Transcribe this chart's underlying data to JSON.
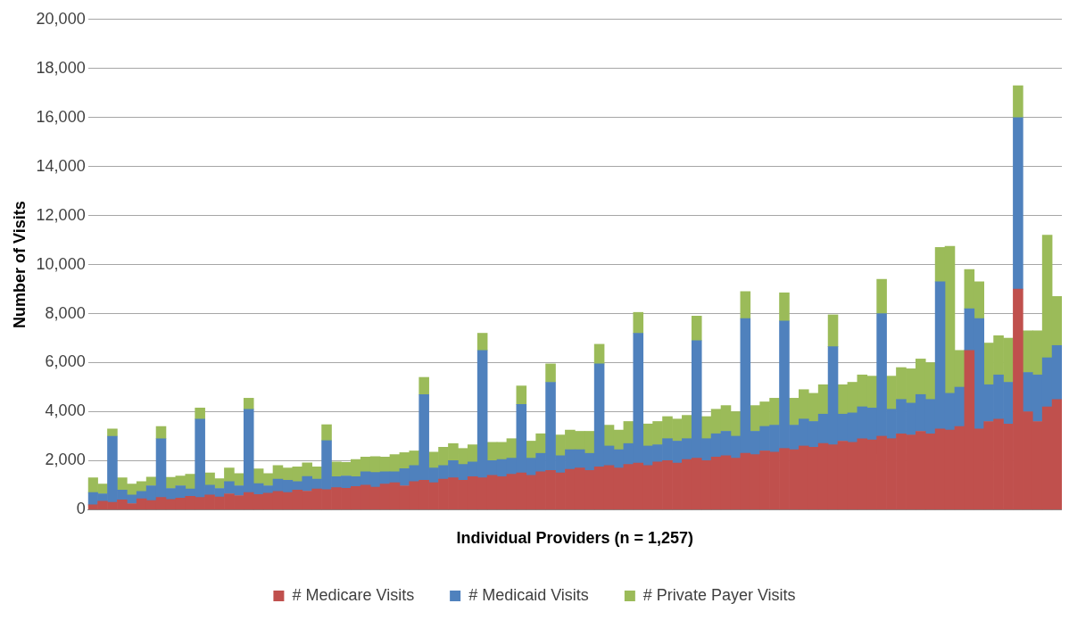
{
  "chart_data": {
    "type": "bar",
    "stacked": true,
    "xlabel": "Individual Providers (n = 1,257)",
    "ylabel": "Number of Visits",
    "legend": "bottom",
    "grid": "y",
    "ylim": [
      0,
      20000
    ],
    "yticks": [
      {
        "value": 0,
        "label": "0"
      },
      {
        "value": 2000,
        "label": "2,000"
      },
      {
        "value": 4000,
        "label": "4,000"
      },
      {
        "value": 6000,
        "label": "6,000"
      },
      {
        "value": 8000,
        "label": "8,000"
      },
      {
        "value": 10000,
        "label": "10,000"
      },
      {
        "value": 12000,
        "label": "12,000"
      },
      {
        "value": 14000,
        "label": "14,000"
      },
      {
        "value": 16000,
        "label": "16,000"
      },
      {
        "value": 18000,
        "label": "18,000"
      },
      {
        "value": 20000,
        "label": "20,000"
      }
    ],
    "categories": [
      null,
      null,
      null,
      null,
      null,
      null,
      null,
      null,
      null,
      null,
      null,
      null,
      null,
      null,
      null,
      null,
      null,
      null,
      null,
      null,
      null,
      null,
      null,
      null,
      null,
      null,
      null,
      null,
      null,
      null,
      null,
      null,
      null,
      null,
      null,
      null,
      null,
      null,
      null,
      null,
      null,
      null,
      null,
      null,
      null,
      null,
      null,
      null,
      null,
      null,
      null,
      null,
      null,
      null,
      null,
      null,
      null,
      null,
      null,
      null,
      null,
      null,
      null,
      null,
      null,
      null,
      null,
      null,
      null,
      null,
      null,
      null,
      null,
      null,
      null,
      null,
      null,
      null,
      null,
      null,
      null,
      null,
      null,
      null,
      null,
      null,
      null,
      null,
      null,
      null,
      null,
      null,
      null,
      null,
      null,
      null,
      null,
      null,
      null,
      null
    ],
    "series": [
      {
        "name": "# Medicare Visits",
        "color": "#c0504d",
        "values": [
          200,
          350,
          300,
          400,
          250,
          450,
          380,
          500,
          420,
          480,
          550,
          500,
          600,
          520,
          650,
          580,
          700,
          620,
          680,
          750,
          700,
          800,
          760,
          850,
          820,
          900,
          880,
          950,
          1000,
          920,
          1050,
          1100,
          980,
          1150,
          1200,
          1100,
          1250,
          1300,
          1200,
          1350,
          1300,
          1400,
          1350,
          1450,
          1500,
          1400,
          1550,
          1600,
          1500,
          1650,
          1700,
          1600,
          1750,
          1800,
          1700,
          1850,
          1900,
          1800,
          1950,
          2000,
          1900,
          2050,
          2100,
          2000,
          2150,
          2200,
          2100,
          2300,
          2250,
          2400,
          2350,
          2500,
          2450,
          2600,
          2550,
          2700,
          2650,
          2800,
          2750,
          2900,
          2850,
          3000,
          2900,
          3100,
          3050,
          3200,
          3100,
          3300,
          3250,
          3400,
          6500,
          3300,
          3600,
          3700,
          3500,
          9000,
          4000,
          3600,
          4200,
          4500
        ]
      },
      {
        "name": "# Medicaid Visits",
        "color": "#4f81bd",
        "values": [
          500,
          300,
          2700,
          400,
          350,
          300,
          600,
          2400,
          450,
          500,
          300,
          3200,
          400,
          350,
          500,
          400,
          3400,
          450,
          300,
          500,
          500,
          350,
          600,
          400,
          2000,
          450,
          500,
          400,
          550,
          600,
          500,
          450,
          700,
          650,
          3500,
          600,
          550,
          700,
          650,
          600,
          5200,
          600,
          700,
          650,
          2800,
          700,
          750,
          3600,
          700,
          800,
          750,
          700,
          4200,
          800,
          750,
          850,
          5300,
          800,
          700,
          900,
          900,
          850,
          4800,
          900,
          950,
          1000,
          900,
          5500,
          950,
          1000,
          1100,
          5200,
          1000,
          1100,
          1050,
          1200,
          4000,
          1100,
          1200,
          1300,
          1300,
          5000,
          1200,
          1400,
          1300,
          1500,
          1400,
          6000,
          1500,
          1600,
          1700,
          4500,
          1500,
          1800,
          1700,
          7000,
          1600,
          1900,
          2000,
          2200
        ]
      },
      {
        "name": "# Private Payer Visits",
        "color": "#9bbb59",
        "values": [
          600,
          400,
          300,
          500,
          450,
          400,
          350,
          500,
          450,
          400,
          600,
          450,
          500,
          400,
          550,
          500,
          450,
          600,
          500,
          550,
          500,
          600,
          550,
          500,
          650,
          600,
          550,
          700,
          600,
          650,
          600,
          700,
          650,
          600,
          700,
          650,
          750,
          700,
          650,
          700,
          700,
          750,
          700,
          800,
          750,
          700,
          800,
          750,
          850,
          800,
          750,
          900,
          800,
          850,
          800,
          900,
          850,
          900,
          950,
          900,
          900,
          950,
          1000,
          900,
          1000,
          1050,
          1000,
          1100,
          1050,
          1000,
          1100,
          1150,
          1100,
          1200,
          1150,
          1200,
          1300,
          1200,
          1250,
          1300,
          1300,
          1400,
          1350,
          1300,
          1400,
          1450,
          1500,
          1400,
          6000,
          1500,
          1600,
          1500,
          1700,
          1600,
          1800,
          1300,
          1700,
          1800,
          5000,
          2000
        ]
      }
    ]
  }
}
